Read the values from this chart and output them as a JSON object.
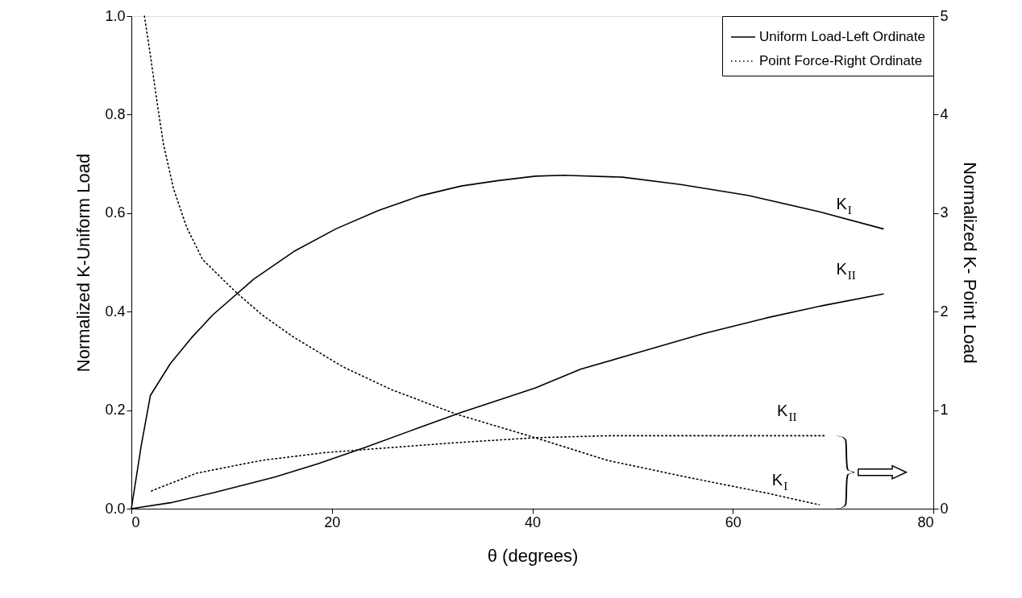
{
  "chart_data": {
    "type": "line",
    "xlabel": "θ (degrees)",
    "ylabel": "Normalized K-Uniform Load",
    "y2label": "Normalized K- Point Load",
    "xlim": [
      0,
      80
    ],
    "xticks": [
      0,
      20,
      40,
      60,
      80
    ],
    "ylim": [
      0,
      1
    ],
    "yticks": [
      {
        "value": 0,
        "label": "0.0"
      },
      0.2,
      0.4,
      0.6,
      0.8,
      {
        "value": 1,
        "label": "1.0"
      }
    ],
    "y2lim": [
      0,
      5
    ],
    "y2ticks": [
      0,
      1,
      2,
      3,
      4,
      5
    ],
    "grid": false,
    "legend": "top right",
    "marker": "none",
    "series": [
      {
        "name": "Uniform Load-Left Ordinate",
        "color": "#000000",
        "line_style": "solid",
        "x": [
          0,
          1,
          1.9,
          3.9,
          6,
          8.1,
          12.2,
          16.2,
          20.4,
          24.6,
          28.8,
          32.9,
          36.6,
          40.3,
          43.1,
          49,
          54.8,
          61.5,
          68.6,
          75
        ],
        "values": [
          0,
          0.13,
          0.23,
          0.295,
          0.347,
          0.393,
          0.466,
          0.522,
          0.568,
          0.605,
          0.635,
          0.655,
          0.666,
          0.675,
          0.677,
          0.673,
          0.658,
          0.636,
          0.603,
          0.568
        ]
      },
      {
        "color": "#000000",
        "line_style": "solid",
        "x": [
          0,
          3.9,
          8.1,
          14.3,
          18.6,
          23.3,
          28.5,
          33,
          40.3,
          44.8,
          50.9,
          57,
          63.3,
          68.9,
          75
        ],
        "values": [
          0,
          0.012,
          0.032,
          0.064,
          0.091,
          0.124,
          0.163,
          0.196,
          0.245,
          0.283,
          0.319,
          0.355,
          0.387,
          0.412,
          0.436
        ]
      },
      {
        "name": "Point Force-Right Ordinate",
        "color": "#000000",
        "line_style": "dotted",
        "axis": "y2",
        "x": [
          1.3,
          1.9,
          2.6,
          3.2,
          4.2,
          5.5,
          7.1,
          10.4,
          13,
          16.2,
          21.1,
          25.9,
          32.4,
          40.3,
          47.5,
          55.4,
          63.3,
          68.6
        ],
        "values": [
          5.0,
          4.6,
          4.1,
          3.7,
          3.25,
          2.86,
          2.53,
          2.2,
          1.97,
          1.74,
          1.44,
          1.21,
          0.96,
          0.72,
          0.49,
          0.32,
          0.16,
          0.04
        ]
      },
      {
        "color": "#000000",
        "line_style": "dotted",
        "axis": "y2",
        "x": [
          2,
          6.5,
          13,
          19.4,
          25.9,
          32.4,
          40.3,
          47.5,
          55,
          62,
          69.1
        ],
        "values": [
          0.18,
          0.36,
          0.49,
          0.57,
          0.62,
          0.67,
          0.72,
          0.74,
          0.74,
          0.74,
          0.74
        ]
      }
    ],
    "annotations": [
      "K$_{I}$",
      "K$_{II}$",
      "K$_{I}$",
      "K$_{II}$"
    ]
  }
}
